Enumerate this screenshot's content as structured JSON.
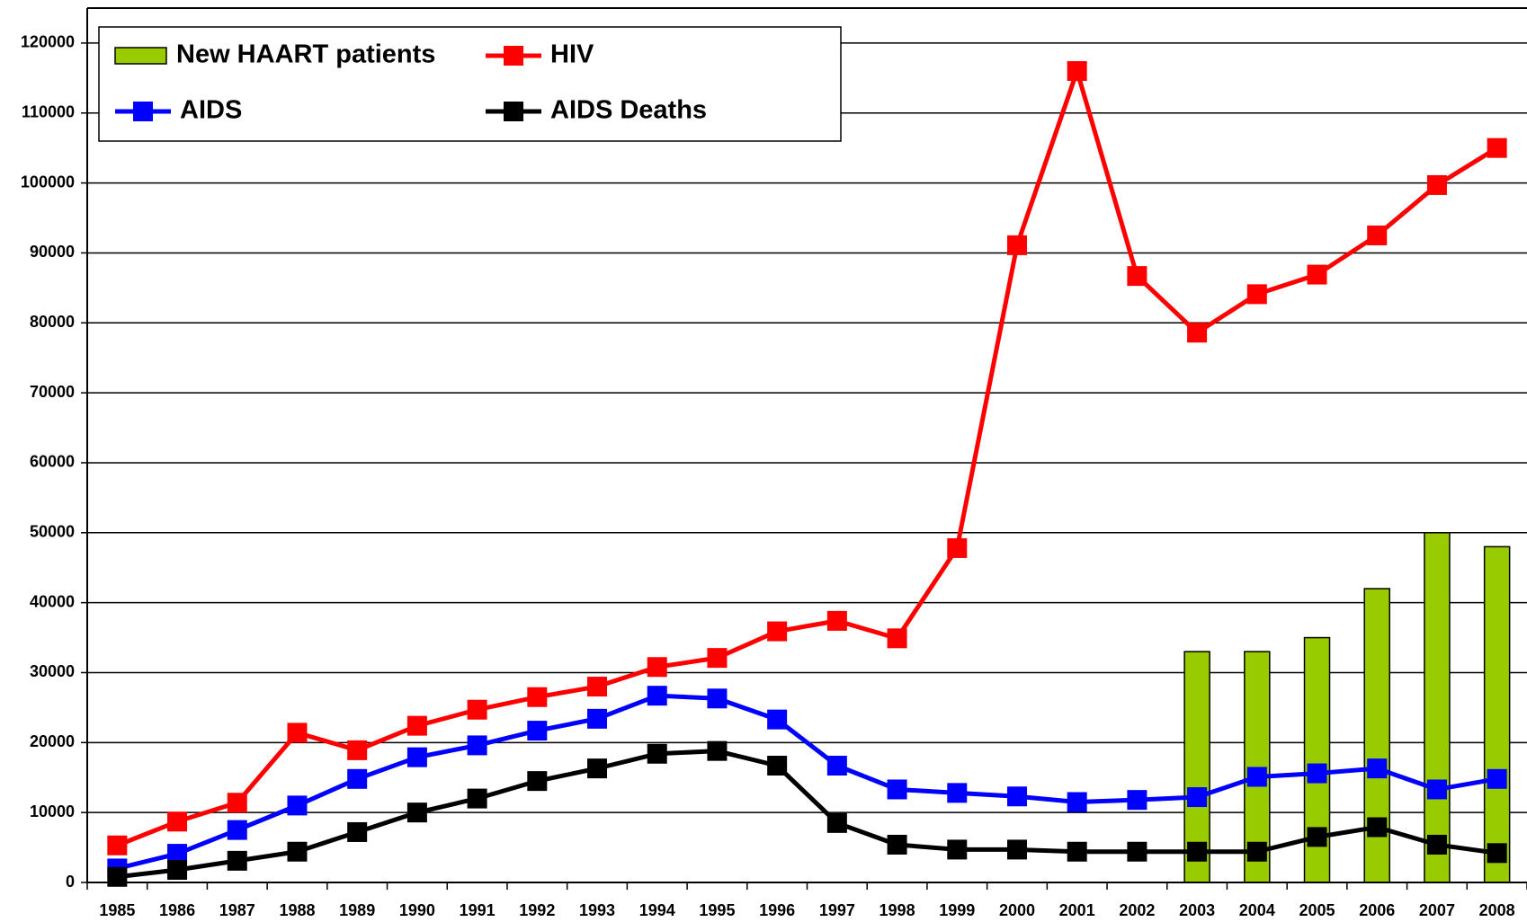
{
  "chart_data": {
    "type": "line",
    "categories": [
      "1985",
      "1986",
      "1987",
      "1988",
      "1989",
      "1990",
      "1991",
      "1992",
      "1993",
      "1994",
      "1995",
      "1996",
      "1997",
      "1998",
      "1999",
      "2000",
      "2001",
      "2002",
      "2003",
      "2004",
      "2005",
      "2006",
      "2007",
      "2008"
    ],
    "series": [
      {
        "name": "New HAART patients",
        "type": "bar",
        "color": "#99cc00",
        "values": [
          null,
          null,
          null,
          null,
          null,
          null,
          null,
          null,
          null,
          null,
          null,
          null,
          null,
          null,
          null,
          null,
          null,
          null,
          33000,
          33000,
          35000,
          42000,
          50000,
          48000
        ]
      },
      {
        "name": "HIV",
        "type": "line",
        "color": "#ff0000",
        "values": [
          5300,
          8700,
          11400,
          21400,
          18900,
          22400,
          24700,
          26500,
          28000,
          30800,
          32100,
          35900,
          37400,
          34900,
          47800,
          91100,
          116000,
          86700,
          78600,
          84100,
          86900,
          92500,
          99700,
          105000
        ]
      },
      {
        "name": "AIDS",
        "type": "line",
        "color": "#0000ff",
        "values": [
          2000,
          4100,
          7500,
          11000,
          14800,
          17900,
          19600,
          21700,
          23400,
          26700,
          26300,
          23300,
          16700,
          13300,
          12800,
          12300,
          11500,
          11800,
          12200,
          15100,
          15600,
          16300,
          13300,
          14800
        ]
      },
      {
        "name": "AIDS Deaths",
        "type": "line",
        "color": "#000000",
        "values": [
          800,
          1800,
          3100,
          4400,
          7200,
          10000,
          12000,
          14500,
          16300,
          18400,
          18800,
          16700,
          8500,
          5400,
          4700,
          4700,
          4400,
          4400,
          4400,
          4400,
          6500,
          7900,
          5400,
          4200
        ]
      }
    ],
    "ylim": [
      0,
      125000
    ],
    "yticks": [
      0,
      10000,
      20000,
      30000,
      40000,
      50000,
      60000,
      70000,
      80000,
      90000,
      100000,
      110000,
      120000
    ],
    "grid": true,
    "legend": "upper left"
  }
}
